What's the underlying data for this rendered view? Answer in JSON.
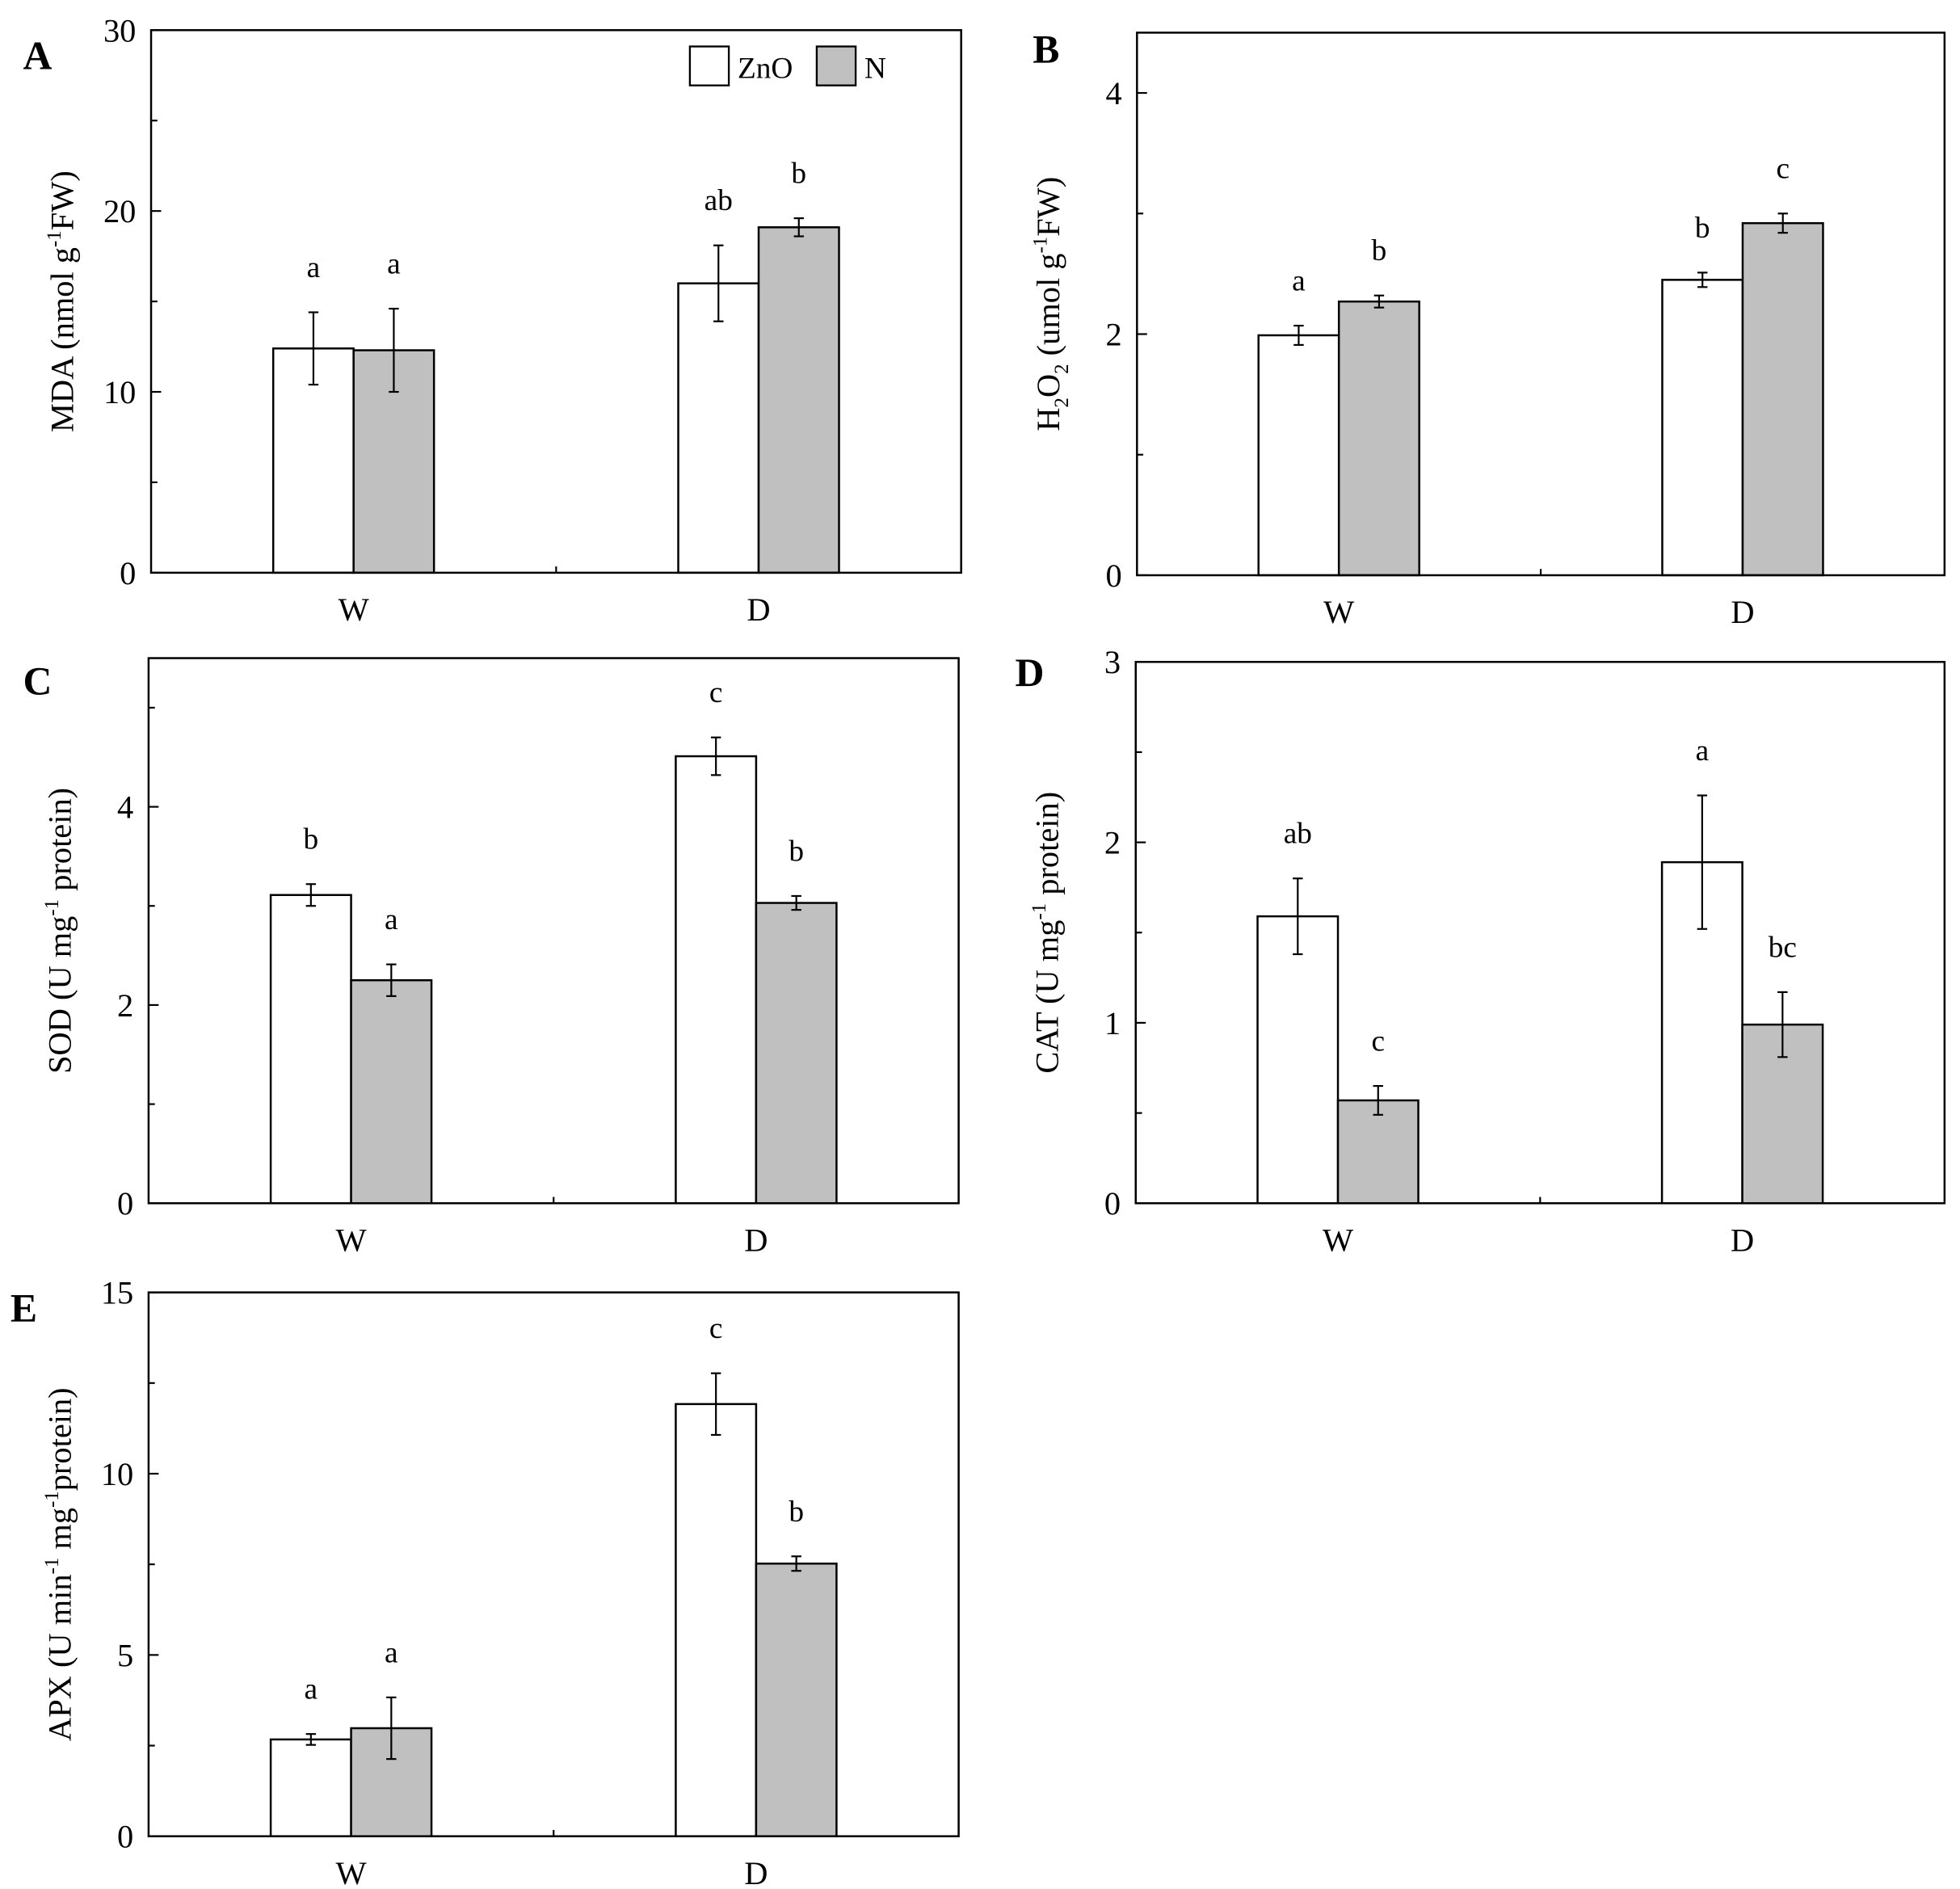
{
  "legend": {
    "items": [
      {
        "label": "ZnO",
        "color": "#ffffff"
      },
      {
        "label": "N",
        "color": "#c0c0c0"
      }
    ],
    "placement": "top-right of panel A"
  },
  "chart_data": [
    {
      "type": "bar",
      "panel": "A",
      "ylabel_main": "MDA (nmol g",
      "ylabel_sup": "-1",
      "ylabel_end": "FW)",
      "categories": [
        "W",
        "D"
      ],
      "ylim": [
        0,
        30
      ],
      "yticks": [
        0,
        10,
        20,
        30
      ],
      "minor_step": 5,
      "grid": false,
      "series": [
        {
          "name": "ZnO",
          "values": [
            12.4,
            16.0
          ],
          "errors": [
            2.0,
            2.1
          ],
          "letters": [
            "a",
            "ab"
          ]
        },
        {
          "name": "N",
          "values": [
            12.3,
            19.1
          ],
          "errors": [
            2.3,
            0.5
          ],
          "letters": [
            "a",
            "b"
          ]
        }
      ]
    },
    {
      "type": "bar",
      "panel": "B",
      "ylabel_main": "H",
      "ylabel_sub1": "2",
      "ylabel_mid": "O",
      "ylabel_sub2": "2",
      "ylabel_rest": " (umol g",
      "ylabel_sup": "-1",
      "ylabel_end": "FW)",
      "categories": [
        "W",
        "D"
      ],
      "ylim": [
        0,
        4.5
      ],
      "yticks": [
        0,
        2,
        4
      ],
      "minor_step": 1,
      "grid": false,
      "series": [
        {
          "name": "ZnO",
          "values": [
            1.99,
            2.45
          ],
          "errors": [
            0.08,
            0.06
          ],
          "letters": [
            "a",
            "b"
          ]
        },
        {
          "name": "N",
          "values": [
            2.27,
            2.92
          ],
          "errors": [
            0.05,
            0.08
          ],
          "letters": [
            "b",
            "c"
          ]
        }
      ]
    },
    {
      "type": "bar",
      "panel": "C",
      "ylabel_main": "SOD (U mg",
      "ylabel_sup": "-1",
      "ylabel_end": " protein)",
      "categories": [
        "W",
        "D"
      ],
      "ylim": [
        0,
        5.5
      ],
      "yticks": [
        0,
        2,
        4
      ],
      "minor_step": 1,
      "grid": false,
      "series": [
        {
          "name": "ZnO",
          "values": [
            3.11,
            4.51
          ],
          "errors": [
            0.11,
            0.19
          ],
          "letters": [
            "b",
            "c"
          ]
        },
        {
          "name": "N",
          "values": [
            2.25,
            3.03
          ],
          "errors": [
            0.16,
            0.07
          ],
          "letters": [
            "a",
            "b"
          ]
        }
      ]
    },
    {
      "type": "bar",
      "panel": "D",
      "ylabel_main": "CAT (U mg",
      "ylabel_sup": "-1",
      "ylabel_end": " protein)",
      "categories": [
        "W",
        "D"
      ],
      "ylim": [
        0,
        3
      ],
      "yticks": [
        0,
        1,
        2,
        3
      ],
      "minor_step": 0.5,
      "grid": false,
      "series": [
        {
          "name": "ZnO",
          "values": [
            1.59,
            1.89
          ],
          "errors": [
            0.21,
            0.37
          ],
          "letters": [
            "ab",
            "a"
          ]
        },
        {
          "name": "N",
          "values": [
            0.57,
            0.99
          ],
          "errors": [
            0.08,
            0.18
          ],
          "letters": [
            "c",
            "bc"
          ]
        }
      ]
    },
    {
      "type": "bar",
      "panel": "E",
      "ylabel_main": "APX (U min",
      "ylabel_sup": "-1",
      "ylabel_end": " mg",
      "ylabel_sup2": "-1",
      "ylabel_end2": "protein)",
      "categories": [
        "W",
        "D"
      ],
      "ylim": [
        0,
        15
      ],
      "yticks": [
        0,
        5,
        10,
        15
      ],
      "minor_step": 2.5,
      "grid": false,
      "series": [
        {
          "name": "ZnO",
          "values": [
            2.67,
            11.92
          ],
          "errors": [
            0.15,
            0.85
          ],
          "letters": [
            "a",
            "c"
          ]
        },
        {
          "name": "N",
          "values": [
            2.98,
            7.52
          ],
          "errors": [
            0.85,
            0.2
          ],
          "letters": [
            "a",
            "b"
          ]
        }
      ]
    }
  ]
}
